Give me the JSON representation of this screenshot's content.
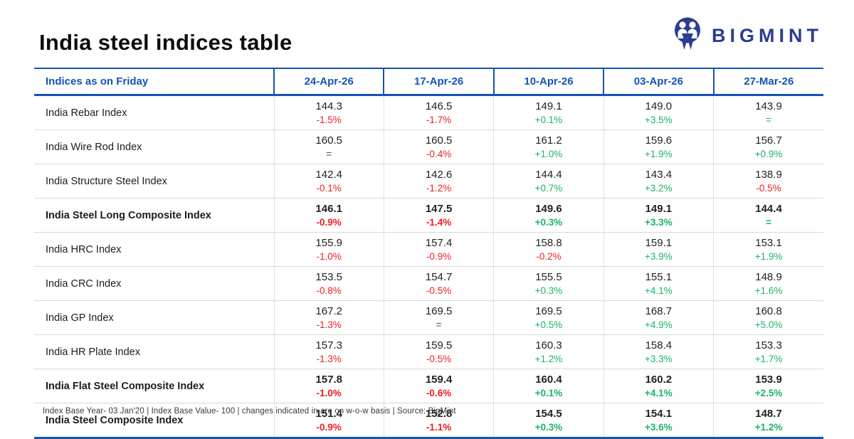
{
  "page": {
    "title": "India steel indices table"
  },
  "brand": {
    "name": "BIGMINT",
    "logo_icon": "bigmint-owl-icon"
  },
  "colors": {
    "blue": "#1553b5",
    "navy": "#2b3d8f",
    "green": "#1db269",
    "red": "#ee1d23",
    "neutral": "#4d4d4d"
  },
  "footer": {
    "note": "Index Base Year- 03 Jan'20 | Index Base Value- 100 | changes indicated in are on w-o-w basis | Source: BigMint"
  },
  "chart_data": {
    "type": "table",
    "title": "India steel indices table",
    "header_label": "Indices as on Friday",
    "columns": [
      "24-Apr-26",
      "17-Apr-26",
      "10-Apr-26",
      "03-Apr-26",
      "27-Mar-26"
    ],
    "rows": [
      {
        "name": "India Rebar Index",
        "bold": false,
        "cells": [
          {
            "value": "144.3",
            "change": "-1.5%",
            "color": "red"
          },
          {
            "value": "146.5",
            "change": "-1.7%",
            "color": "red"
          },
          {
            "value": "149.1",
            "change": "+0.1%",
            "color": "green"
          },
          {
            "value": "149.0",
            "change": "+3.5%",
            "color": "green"
          },
          {
            "value": "143.9",
            "change": "=",
            "color": "green"
          }
        ]
      },
      {
        "name": "India Wire Rod Index",
        "bold": false,
        "cells": [
          {
            "value": "160.5",
            "change": "=",
            "color": "neutral"
          },
          {
            "value": "160.5",
            "change": "-0.4%",
            "color": "red"
          },
          {
            "value": "161.2",
            "change": "+1.0%",
            "color": "green"
          },
          {
            "value": "159.6",
            "change": "+1.9%",
            "color": "green"
          },
          {
            "value": "156.7",
            "change": "+0.9%",
            "color": "green"
          }
        ]
      },
      {
        "name": "India Structure Steel Index",
        "bold": false,
        "cells": [
          {
            "value": "142.4",
            "change": "-0.1%",
            "color": "red"
          },
          {
            "value": "142.6",
            "change": "-1.2%",
            "color": "red"
          },
          {
            "value": "144.4",
            "change": "+0.7%",
            "color": "green"
          },
          {
            "value": "143.4",
            "change": "+3.2%",
            "color": "green"
          },
          {
            "value": "138.9",
            "change": "-0.5%",
            "color": "red"
          }
        ]
      },
      {
        "name": "India Steel Long Composite Index",
        "bold": true,
        "cells": [
          {
            "value": "146.1",
            "change": "-0.9%",
            "color": "red"
          },
          {
            "value": "147.5",
            "change": "-1.4%",
            "color": "red"
          },
          {
            "value": "149.6",
            "change": "+0.3%",
            "color": "green"
          },
          {
            "value": "149.1",
            "change": "+3.3%",
            "color": "green"
          },
          {
            "value": "144.4",
            "change": "=",
            "color": "green"
          }
        ]
      },
      {
        "name": "India HRC Index",
        "bold": false,
        "cells": [
          {
            "value": "155.9",
            "change": "-1.0%",
            "color": "red"
          },
          {
            "value": "157.4",
            "change": "-0.9%",
            "color": "red"
          },
          {
            "value": "158.8",
            "change": "-0.2%",
            "color": "red"
          },
          {
            "value": "159.1",
            "change": "+3.9%",
            "color": "green"
          },
          {
            "value": "153.1",
            "change": "+1.9%",
            "color": "green"
          }
        ]
      },
      {
        "name": "India CRC Index",
        "bold": false,
        "cells": [
          {
            "value": "153.5",
            "change": "-0.8%",
            "color": "red"
          },
          {
            "value": "154.7",
            "change": "-0.5%",
            "color": "red"
          },
          {
            "value": "155.5",
            "change": "+0.3%",
            "color": "green"
          },
          {
            "value": "155.1",
            "change": "+4.1%",
            "color": "green"
          },
          {
            "value": "148.9",
            "change": "+1.6%",
            "color": "green"
          }
        ]
      },
      {
        "name": "India GP Index",
        "bold": false,
        "cells": [
          {
            "value": "167.2",
            "change": "-1.3%",
            "color": "red"
          },
          {
            "value": "169.5",
            "change": "=",
            "color": "neutral"
          },
          {
            "value": "169.5",
            "change": "+0.5%",
            "color": "green"
          },
          {
            "value": "168.7",
            "change": "+4.9%",
            "color": "green"
          },
          {
            "value": "160.8",
            "change": "+5.0%",
            "color": "green"
          }
        ]
      },
      {
        "name": "India HR Plate Index",
        "bold": false,
        "cells": [
          {
            "value": "157.3",
            "change": "-1.3%",
            "color": "red"
          },
          {
            "value": "159.5",
            "change": "-0.5%",
            "color": "red"
          },
          {
            "value": "160.3",
            "change": "+1.2%",
            "color": "green"
          },
          {
            "value": "158.4",
            "change": "+3.3%",
            "color": "green"
          },
          {
            "value": "153.3",
            "change": "+1.7%",
            "color": "green"
          }
        ]
      },
      {
        "name": "India Flat Steel Composite Index",
        "bold": true,
        "cells": [
          {
            "value": "157.8",
            "change": "-1.0%",
            "color": "red"
          },
          {
            "value": "159.4",
            "change": "-0.6%",
            "color": "red"
          },
          {
            "value": "160.4",
            "change": "+0.1%",
            "color": "green"
          },
          {
            "value": "160.2",
            "change": "+4.1%",
            "color": "green"
          },
          {
            "value": "153.9",
            "change": "+2.5%",
            "color": "green"
          }
        ]
      },
      {
        "name": "India Steel Composite Index",
        "bold": true,
        "cells": [
          {
            "value": "151.4",
            "change": "-0.9%",
            "color": "red"
          },
          {
            "value": "152.8",
            "change": "-1.1%",
            "color": "red"
          },
          {
            "value": "154.5",
            "change": "+0.3%",
            "color": "green"
          },
          {
            "value": "154.1",
            "change": "+3.6%",
            "color": "green"
          },
          {
            "value": "148.7",
            "change": "+1.2%",
            "color": "green"
          }
        ]
      }
    ],
    "footnote": "Index Base Year- 03 Jan'20 | Index Base Value- 100 | changes indicated in are on w-o-w basis | Source: BigMint"
  }
}
